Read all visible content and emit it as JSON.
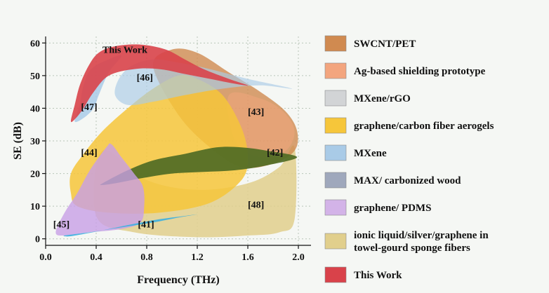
{
  "chart_data": {
    "type": "area",
    "xlabel": "Frequency (THz)",
    "ylabel": "SE (dB)",
    "xlim": [
      0.0,
      2.1
    ],
    "ylim": [
      -2,
      62
    ],
    "xticks": [
      "0.0",
      "0.4",
      "0.8",
      "1.2",
      "1.6",
      "2.0"
    ],
    "yticks": [
      "0",
      "10",
      "20",
      "30",
      "40",
      "50",
      "60"
    ],
    "grid": true,
    "legend": [
      {
        "label": "SWCNT/PET",
        "color": "#d08a50"
      },
      {
        "label": "Ag-based shielding prototype",
        "color": "#f3a57e"
      },
      {
        "label": "MXene/rGO",
        "color": "#d2d4d6"
      },
      {
        "label": "graphene/carbon fiber aerogels",
        "color": "#f6c63a"
      },
      {
        "label": "MXene",
        "color": "#a9cbe7"
      },
      {
        "label": "MAX/ carbonized  wood",
        "color": "#9fa8bc"
      },
      {
        "label": "graphene/ PDMS",
        "color": "#d3b3e8"
      },
      {
        "label": "ionic liquid/silver/graphene in towel-gourd sponge fibers",
        "label_lines": [
          "ionic liquid/silver/graphene in",
          "towel-gourd sponge fibers"
        ],
        "color": "#e1cf8c"
      },
      {
        "label": "This Work",
        "color": "#d9424a"
      }
    ],
    "regions": [
      {
        "ref": "[48]",
        "color": "#e1cf8c",
        "opacity": 0.85,
        "outline": [
          [
            0.45,
            27
          ],
          [
            0.8,
            18
          ],
          [
            1.2,
            15
          ],
          [
            1.6,
            17
          ],
          [
            1.85,
            22
          ],
          [
            1.97,
            28
          ],
          [
            1.97,
            6
          ],
          [
            1.85,
            2
          ],
          [
            1.6,
            1
          ],
          [
            1.2,
            0.5
          ],
          [
            0.7,
            2
          ],
          [
            0.4,
            7
          ]
        ]
      },
      {
        "ref": "[43]",
        "color": "#d08a50",
        "opacity": 0.8,
        "outline": [
          [
            0.85,
            53
          ],
          [
            1.0,
            58
          ],
          [
            1.2,
            57
          ],
          [
            1.45,
            51
          ],
          [
            1.7,
            45
          ],
          [
            1.9,
            39
          ],
          [
            1.99,
            33
          ],
          [
            1.97,
            27
          ],
          [
            1.8,
            23
          ],
          [
            1.55,
            22
          ],
          [
            1.3,
            28
          ],
          [
            1.05,
            38
          ]
        ]
      },
      {
        "ref": "",
        "color": "#f3a57e",
        "opacity": 0.5,
        "outline": [
          [
            1.45,
            44
          ],
          [
            1.7,
            43
          ],
          [
            1.88,
            39
          ],
          [
            1.97,
            33
          ],
          [
            1.9,
            27
          ],
          [
            1.7,
            25
          ],
          [
            1.5,
            30
          ]
        ]
      },
      {
        "ref": "[44]",
        "color": "#f6c63a",
        "opacity": 0.85,
        "outline": [
          [
            0.2,
            20
          ],
          [
            0.3,
            26
          ],
          [
            0.45,
            33
          ],
          [
            0.65,
            40
          ],
          [
            0.85,
            46
          ],
          [
            1.05,
            50
          ],
          [
            1.2,
            49
          ],
          [
            1.4,
            44
          ],
          [
            1.55,
            34
          ],
          [
            1.6,
            25
          ],
          [
            1.55,
            18
          ],
          [
            1.3,
            11
          ],
          [
            0.9,
            8
          ],
          [
            0.5,
            8
          ],
          [
            0.25,
            10
          ],
          [
            0.2,
            14
          ]
        ]
      },
      {
        "ref": "[47]",
        "color": "#a9cbe7",
        "opacity": 0.85,
        "outline": [
          [
            0.23,
            36
          ],
          [
            0.27,
            41
          ],
          [
            0.3,
            47
          ],
          [
            0.36,
            52
          ],
          [
            0.5,
            55
          ],
          [
            0.6,
            56
          ],
          [
            0.5,
            51
          ],
          [
            0.42,
            44
          ],
          [
            0.38,
            40
          ],
          [
            0.3,
            37
          ]
        ]
      },
      {
        "ref": "[46]",
        "color": "#a9cbe7",
        "opacity": 0.65,
        "outline": [
          [
            0.55,
            44
          ],
          [
            0.58,
            49
          ],
          [
            0.68,
            53
          ],
          [
            0.85,
            55
          ],
          [
            1.05,
            54
          ],
          [
            1.3,
            52
          ],
          [
            1.6,
            49
          ],
          [
            1.95,
            46
          ],
          [
            1.7,
            47
          ],
          [
            1.4,
            46
          ],
          [
            1.1,
            44
          ],
          [
            0.85,
            42
          ],
          [
            0.65,
            41
          ]
        ]
      },
      {
        "ref": "This Work",
        "color": "#d9424a",
        "opacity": 0.9,
        "outline": [
          [
            0.2,
            36
          ],
          [
            0.23,
            41
          ],
          [
            0.27,
            47
          ],
          [
            0.34,
            53
          ],
          [
            0.42,
            57
          ],
          [
            0.55,
            59
          ],
          [
            0.75,
            59.5
          ],
          [
            0.95,
            58
          ],
          [
            1.1,
            55
          ],
          [
            1.25,
            52
          ],
          [
            1.45,
            49
          ],
          [
            1.6,
            47
          ],
          [
            1.5,
            47.5
          ],
          [
            1.3,
            49
          ],
          [
            1.1,
            50.5
          ],
          [
            0.9,
            52
          ],
          [
            0.7,
            52
          ],
          [
            0.5,
            50
          ],
          [
            0.38,
            45
          ],
          [
            0.3,
            40
          ],
          [
            0.24,
            37
          ]
        ]
      },
      {
        "ref": "[42]",
        "color": "#4f6b24",
        "opacity": 0.92,
        "outline": [
          [
            0.45,
            17
          ],
          [
            0.65,
            21
          ],
          [
            0.85,
            24
          ],
          [
            1.1,
            26
          ],
          [
            1.35,
            28
          ],
          [
            1.55,
            28
          ],
          [
            1.75,
            27
          ],
          [
            1.99,
            25
          ],
          [
            1.75,
            22.5
          ],
          [
            1.5,
            21
          ],
          [
            1.25,
            20.5
          ],
          [
            1.0,
            20
          ],
          [
            0.75,
            18.5
          ],
          [
            0.55,
            17
          ],
          [
            0.45,
            16.5
          ]
        ]
      },
      {
        "ref": "[45]",
        "color": "#c89fe6",
        "opacity": 0.8,
        "outline": [
          [
            0.08,
            2
          ],
          [
            0.15,
            8
          ],
          [
            0.25,
            14
          ],
          [
            0.35,
            21
          ],
          [
            0.48,
            28
          ],
          [
            0.52,
            29
          ],
          [
            0.6,
            25
          ],
          [
            0.7,
            20
          ],
          [
            0.77,
            16
          ],
          [
            0.78,
            10
          ],
          [
            0.75,
            5
          ],
          [
            0.6,
            3
          ],
          [
            0.35,
            2
          ],
          [
            0.15,
            1
          ]
        ]
      },
      {
        "ref": "[41]",
        "color": "#3db0e0",
        "opacity": 0.9,
        "outline": [
          [
            0.15,
            1
          ],
          [
            0.35,
            2
          ],
          [
            0.6,
            3.5
          ],
          [
            0.85,
            5
          ],
          [
            1.05,
            6.5
          ],
          [
            1.2,
            7.5
          ],
          [
            1.1,
            7
          ],
          [
            0.9,
            6
          ],
          [
            0.65,
            4.2
          ],
          [
            0.4,
            2.2
          ],
          [
            0.2,
            0.8
          ]
        ]
      }
    ],
    "annotations": [
      {
        "text": "This Work",
        "x": 0.45,
        "y": 57
      },
      {
        "text": "[46]",
        "x": 0.72,
        "y": 48.5
      },
      {
        "text": "[47]",
        "x": 0.28,
        "y": 39.5
      },
      {
        "text": "[43]",
        "x": 1.6,
        "y": 38
      },
      {
        "text": "[44]",
        "x": 0.28,
        "y": 25.5
      },
      {
        "text": "[42]",
        "x": 1.75,
        "y": 25.5
      },
      {
        "text": "[48]",
        "x": 1.6,
        "y": 9.5
      },
      {
        "text": "[45]",
        "x": 0.06,
        "y": 3.5
      },
      {
        "text": "[41]",
        "x": 0.73,
        "y": 3.5
      }
    ]
  }
}
